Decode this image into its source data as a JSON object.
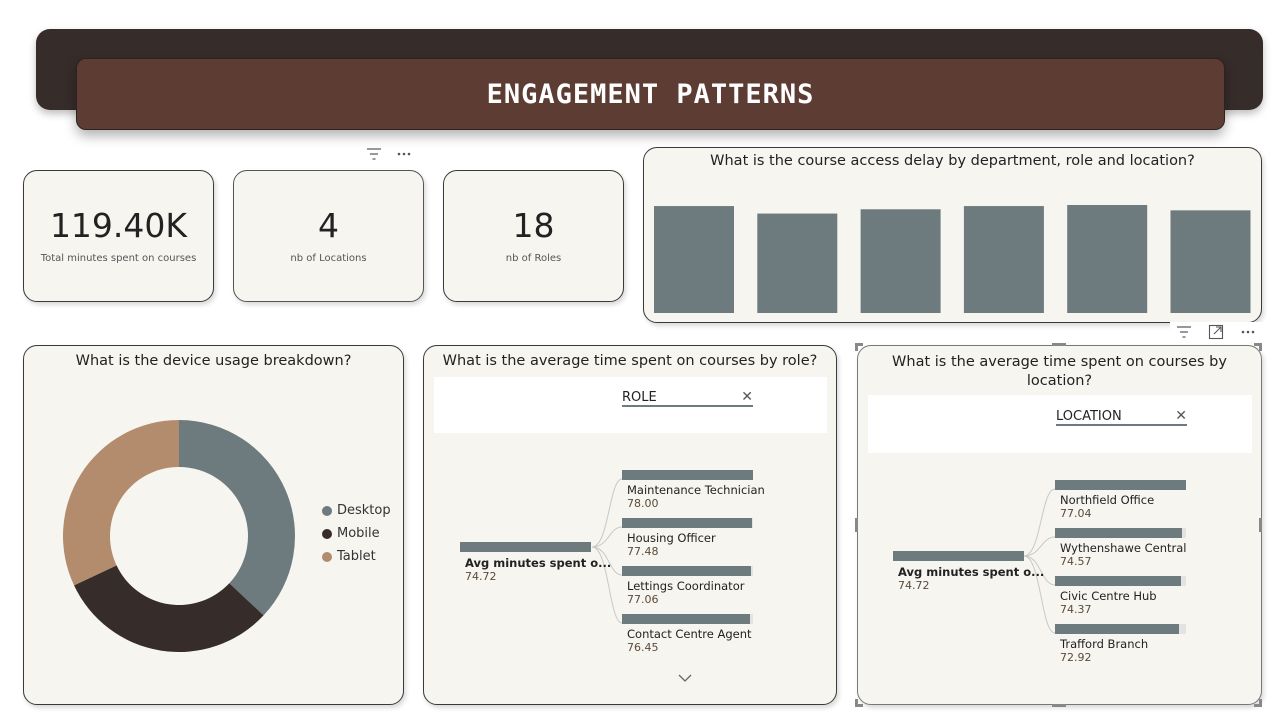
{
  "header": {
    "title": "ENGAGEMENT PATTERNS"
  },
  "kpis": [
    {
      "value": "119.40K",
      "label": "Total minutes spent on courses"
    },
    {
      "value": "4",
      "label": "nb of Locations"
    },
    {
      "value": "18",
      "label": "nb of Roles"
    }
  ],
  "visual_header_icons": {
    "filter": "filter-icon",
    "more": "more-options-icon",
    "focus": "focus-mode-icon"
  },
  "delay_chart": {
    "title": "What is the course access delay by department, role and location?",
    "chart_data": {
      "type": "bar",
      "values": [
        1.0,
        0.93,
        0.97,
        1.0,
        1.01,
        0.96
      ],
      "color": "#6d7b7e"
    }
  },
  "device_chart": {
    "title": "What is the device usage breakdown?",
    "chart_data": {
      "type": "pie",
      "categories": [
        "Desktop",
        "Mobile",
        "Tablet"
      ],
      "values": [
        37,
        31,
        32
      ],
      "colors": [
        "#6d7b7e",
        "#362c2a",
        "#b38b6d"
      ]
    }
  },
  "role_decomp": {
    "title": "What is the average time spent on courses by role?",
    "field": "ROLE",
    "root": {
      "label": "Avg minutes spent o...",
      "value": "74.72"
    },
    "nodes": [
      {
        "label": "Maintenance Technician",
        "value": "78.00"
      },
      {
        "label": "Housing Officer",
        "value": "77.48"
      },
      {
        "label": "Lettings Coordinator",
        "value": "77.06"
      },
      {
        "label": "Contact Centre Agent",
        "value": "76.45"
      }
    ]
  },
  "location_decomp": {
    "title": "What is the average time spent on courses by location?",
    "field": "LOCATION",
    "root": {
      "label": "Avg minutes spent o...",
      "value": "74.72"
    },
    "nodes": [
      {
        "label": "Northfield Office",
        "value": "77.04"
      },
      {
        "label": "Wythenshawe Central",
        "value": "74.57"
      },
      {
        "label": "Civic Centre Hub",
        "value": "74.37"
      },
      {
        "label": "Trafford Branch",
        "value": "72.92"
      }
    ]
  },
  "colors": {
    "bar": "#6d7b7e",
    "card_bg": "#f7f5f0",
    "banner": "#5d3d33",
    "banner_back": "#362c2a"
  }
}
